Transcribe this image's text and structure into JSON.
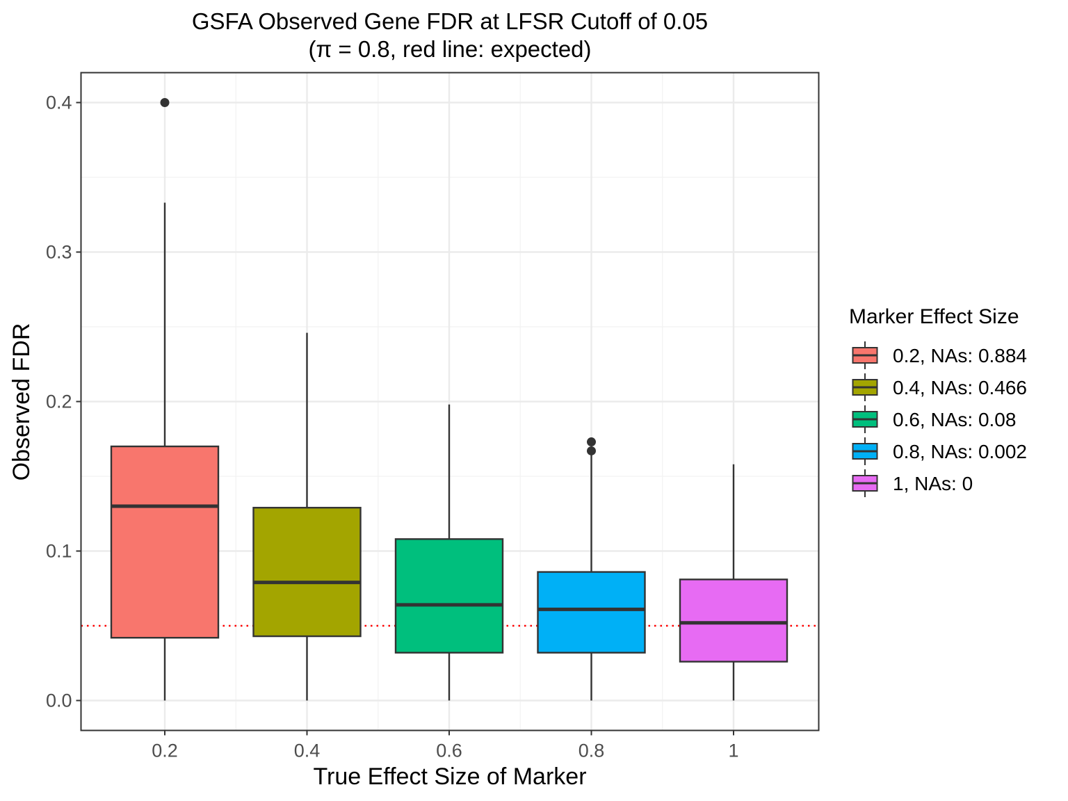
{
  "chart_data": {
    "type": "boxplot",
    "title": "GSFA Observed Gene FDR at LFSR Cutoff of 0.05",
    "subtitle": "(π = 0.8, red line: expected)",
    "xlabel": "True Effect Size of Marker",
    "ylabel": "Observed FDR",
    "categories": [
      "0.2",
      "0.4",
      "0.6",
      "0.8",
      "1"
    ],
    "ylim": [
      -0.02,
      0.42
    ],
    "yticks": [
      0.0,
      0.1,
      0.2,
      0.3,
      0.4
    ],
    "ytick_labels": [
      "0.0",
      "0.1",
      "0.2",
      "0.3",
      "0.4"
    ],
    "grid": true,
    "reference_line": {
      "y": 0.05,
      "color": "#ff0000",
      "style": "dotted"
    },
    "legend": {
      "title": "Marker Effect Size",
      "placement": "right"
    },
    "series": [
      {
        "name": "0.2, NAs: 0.884",
        "category": "0.2",
        "color": "#F8766D",
        "whisker_low": 0.0,
        "q1": 0.042,
        "median": 0.13,
        "q3": 0.17,
        "whisker_high": 0.333,
        "outliers": [
          0.4
        ]
      },
      {
        "name": "0.4, NAs: 0.466",
        "category": "0.4",
        "color": "#A3A500",
        "whisker_low": 0.0,
        "q1": 0.043,
        "median": 0.079,
        "q3": 0.129,
        "whisker_high": 0.246,
        "outliers": []
      },
      {
        "name": "0.6, NAs: 0.08",
        "category": "0.6",
        "color": "#00BF7D",
        "whisker_low": 0.0,
        "q1": 0.032,
        "median": 0.064,
        "q3": 0.108,
        "whisker_high": 0.198,
        "outliers": []
      },
      {
        "name": "0.8, NAs: 0.002",
        "category": "0.8",
        "color": "#00B0F6",
        "whisker_low": 0.0,
        "q1": 0.032,
        "median": 0.061,
        "q3": 0.086,
        "whisker_high": 0.165,
        "outliers": [
          0.167,
          0.173
        ]
      },
      {
        "name": "1, NAs: 0",
        "category": "1",
        "color": "#E76BF3",
        "whisker_low": 0.0,
        "q1": 0.026,
        "median": 0.052,
        "q3": 0.081,
        "whisker_high": 0.158,
        "outliers": []
      }
    ]
  }
}
